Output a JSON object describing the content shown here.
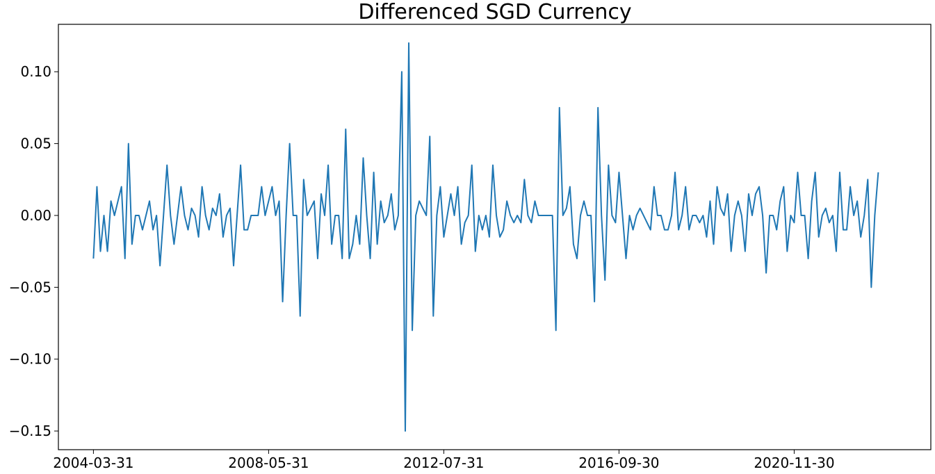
{
  "chart_data": {
    "type": "line",
    "title": "Differenced SGD Currency",
    "xlabel": "",
    "ylabel": "",
    "x_start": "2004-03-31",
    "x_end": "2023-01-31",
    "frequency": "monthly",
    "x_tick_labels": [
      "2004-03-31",
      "2008-05-31",
      "2012-07-31",
      "2016-09-30",
      "2020-11-30"
    ],
    "y_tick_values": [
      -0.15,
      -0.1,
      -0.05,
      0.0,
      0.05,
      0.1
    ],
    "y_tick_labels": [
      "−0.15",
      "−0.10",
      "−0.05",
      "0.00",
      "0.05",
      "0.10"
    ],
    "ylim": [
      -0.163,
      0.133
    ],
    "xlim_dates": [
      "2003-05-31",
      "2024-02-29"
    ],
    "grid": false,
    "line_color": "#1f77b4",
    "series": [
      {
        "values": [
          -0.03,
          0.02,
          -0.025,
          0.0,
          -0.025,
          0.01,
          0.0,
          0.01,
          0.02,
          -0.03,
          0.05,
          -0.02,
          0.0,
          0.0,
          -0.01,
          0.0,
          0.01,
          -0.01,
          0.0,
          -0.035,
          0.0,
          0.035,
          0.0,
          -0.02,
          0.0,
          0.02,
          0.0,
          -0.01,
          0.005,
          0.0,
          -0.015,
          0.02,
          0.0,
          -0.01,
          0.005,
          0.0,
          0.015,
          -0.015,
          0.0,
          0.005,
          -0.035,
          0.0,
          0.035,
          -0.01,
          -0.01,
          0.0,
          0.0,
          0.0,
          0.02,
          0.0,
          0.01,
          0.02,
          0.0,
          0.01,
          -0.06,
          0.0,
          0.05,
          0.0,
          0.0,
          -0.07,
          0.025,
          0.0,
          0.005,
          0.01,
          -0.03,
          0.015,
          0.0,
          0.035,
          -0.02,
          0.0,
          0.0,
          -0.03,
          0.06,
          -0.03,
          -0.02,
          0.0,
          -0.02,
          0.04,
          0.0,
          -0.03,
          0.03,
          -0.02,
          0.01,
          -0.005,
          0.0,
          0.015,
          -0.01,
          0.0,
          0.1,
          -0.15,
          0.12,
          -0.08,
          0.0,
          0.01,
          0.005,
          0.0,
          0.055,
          -0.07,
          0.0,
          0.02,
          -0.015,
          0.0,
          0.015,
          0.0,
          0.02,
          -0.02,
          -0.005,
          0.0,
          0.035,
          -0.025,
          0.0,
          -0.01,
          0.0,
          -0.015,
          0.035,
          0.0,
          -0.015,
          -0.01,
          0.01,
          0.0,
          -0.005,
          0.0,
          -0.005,
          0.025,
          0.0,
          -0.005,
          0.01,
          0.0,
          0.0,
          0.0,
          0.0,
          0.0,
          -0.08,
          0.075,
          0.0,
          0.005,
          0.02,
          -0.02,
          -0.03,
          0.0,
          0.01,
          0.0,
          0.0,
          -0.06,
          0.075,
          0.0,
          -0.045,
          0.035,
          0.0,
          -0.005,
          0.03,
          0.0,
          -0.03,
          0.0,
          -0.01,
          0.0,
          0.005,
          0.0,
          -0.005,
          -0.01,
          0.02,
          0.0,
          0.0,
          -0.01,
          -0.01,
          0.0,
          0.03,
          -0.01,
          0.0,
          0.02,
          -0.01,
          0.0,
          0.0,
          -0.005,
          0.0,
          -0.015,
          0.01,
          -0.02,
          0.02,
          0.005,
          0.0,
          0.015,
          -0.025,
          0.0,
          0.01,
          0.0,
          -0.025,
          0.015,
          0.0,
          0.015,
          0.02,
          0.0,
          -0.04,
          0.0,
          0.0,
          -0.01,
          0.01,
          0.02,
          -0.025,
          0.0,
          -0.005,
          0.03,
          0.0,
          0.0,
          -0.03,
          0.01,
          0.03,
          -0.015,
          0.0,
          0.005,
          -0.005,
          0.0,
          -0.025,
          0.03,
          -0.01,
          -0.01,
          0.02,
          0.0,
          0.01,
          -0.015,
          0.0,
          0.025,
          -0.05,
          0.0,
          0.03
        ]
      }
    ]
  }
}
